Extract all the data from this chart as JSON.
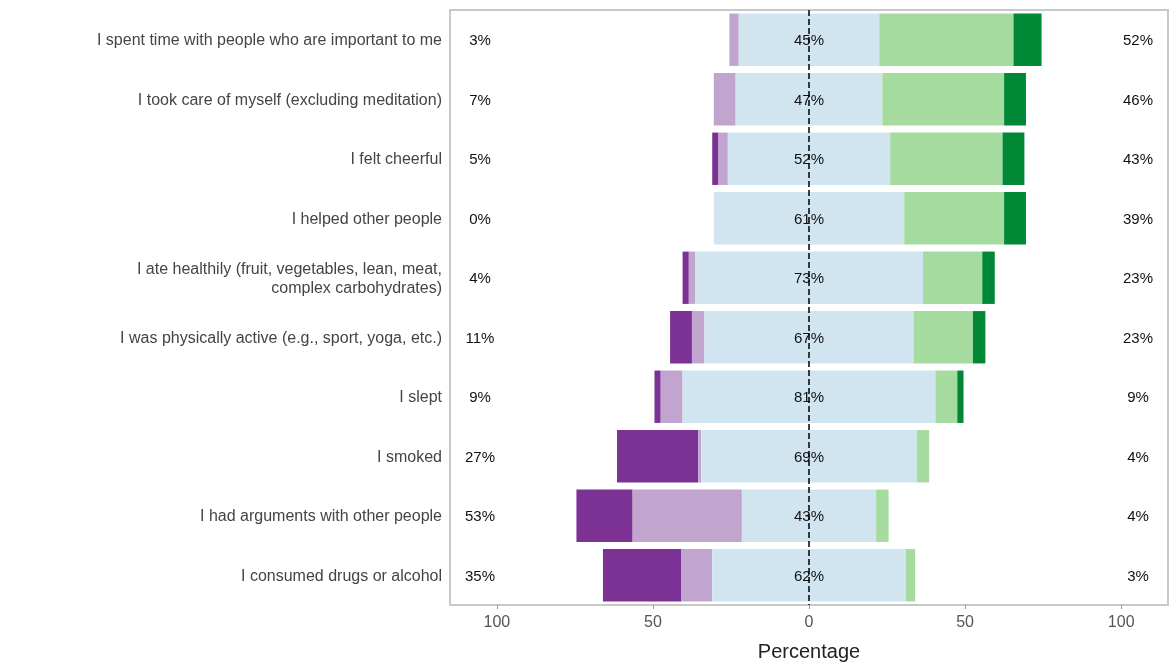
{
  "chart_data": {
    "type": "bar",
    "orientation": "horizontal",
    "xlabel": "Percentage",
    "categories": [
      "I spent time with people who are important to me",
      "I took care of myself (excluding meditation)",
      "I felt cheerful",
      "I helped other people",
      "I ate healthily (fruit, vegetables, lean, meat,\ncomplex carbohydrates)",
      "I was physically active (e.g., sport, yoga, etc.)",
      "I slept",
      "I smoked",
      "I had arguments with other people",
      "I consumed drugs or alcohol"
    ],
    "series": [
      {
        "color": "#7b3294",
        "values": [
          null,
          null,
          2,
          null,
          2,
          7,
          2,
          26,
          18,
          25
        ],
        "base": [
          null,
          null,
          -31,
          null,
          -40.5,
          -44.5,
          -49.5,
          -61.5,
          -74.5,
          -66
        ]
      },
      {
        "color": "#c2a5cf",
        "values": [
          3,
          7,
          3,
          null,
          2,
          4,
          7,
          1,
          35,
          10
        ],
        "base": [
          -25.5,
          -30.5,
          -29,
          null,
          -38.5,
          -37.5,
          -47.5,
          -35.5,
          -56.5,
          -41
        ]
      },
      {
        "color": "#d1e5f0",
        "values": [
          45,
          47,
          52,
          61,
          73,
          67,
          81,
          69,
          43,
          62
        ],
        "base": [
          -22.5,
          -23.5,
          -26,
          -30.5,
          -36.5,
          -33.5,
          -40.5,
          -34.5,
          -21.5,
          -31
        ],
        "value_labels": [
          "45%",
          "47%",
          "52%",
          "61%",
          "73%",
          "67%",
          "81%",
          "69%",
          "43%",
          "62%"
        ]
      },
      {
        "color": "#a6dba0",
        "values": [
          43,
          39,
          36,
          32,
          19,
          19,
          7,
          4,
          4,
          3
        ],
        "base": [
          22.5,
          23.5,
          26,
          30.5,
          36.5,
          33.5,
          40.5,
          34.5,
          21.5,
          31
        ]
      },
      {
        "color": "#008837",
        "values": [
          9,
          7,
          7,
          7,
          4,
          4,
          2,
          null,
          null,
          null
        ],
        "base": [
          65.5,
          62.5,
          62,
          62.5,
          55.5,
          52.5,
          47.5,
          null,
          null,
          null
        ]
      }
    ],
    "xlim": [
      -115,
      115
    ],
    "xticks": [
      {
        "value": -100,
        "label": "100"
      },
      {
        "value": -50,
        "label": "50"
      },
      0,
      50,
      100
    ],
    "ref_lines": [
      {
        "axis": "x",
        "value": 0,
        "color": "#000000",
        "line_style": "dashed"
      }
    ],
    "annotations": [
      "3%",
      "7%",
      "5%",
      "0%",
      "4%",
      "11%",
      "9%",
      "27%",
      "53%",
      "35%",
      "52%",
      "46%",
      "43%",
      "39%",
      "23%",
      "23%",
      "9%",
      "4%",
      "4%",
      "3%"
    ]
  }
}
